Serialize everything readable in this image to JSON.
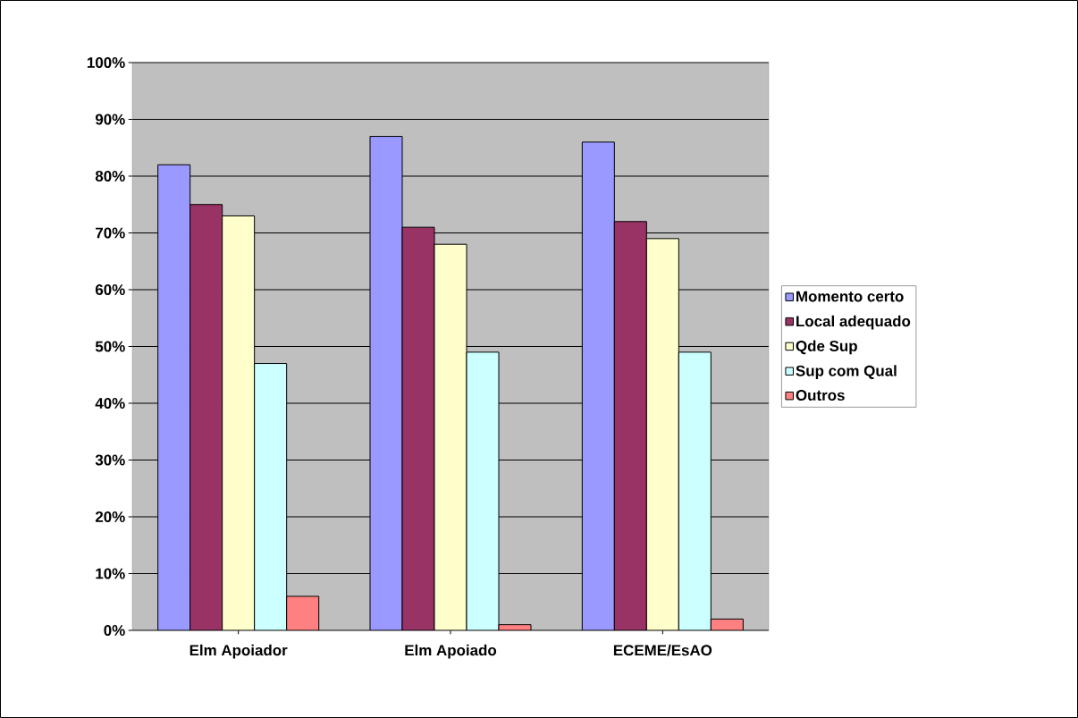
{
  "chart_data": {
    "type": "bar",
    "categories": [
      "Elm Apoiador",
      "Elm Apoiado",
      "ECEME/EsAO"
    ],
    "series": [
      {
        "name": "Momento certo",
        "color": "#9999ff",
        "values": [
          82,
          87,
          86
        ]
      },
      {
        "name": "Local adequado",
        "color": "#993366",
        "values": [
          75,
          71,
          72
        ]
      },
      {
        "name": "Qde Sup",
        "color": "#ffffcc",
        "values": [
          73,
          68,
          69
        ]
      },
      {
        "name": "Sup com Qual",
        "color": "#ccffff",
        "values": [
          47,
          49,
          49
        ]
      },
      {
        "name": "Outros",
        "color": "#ff8080",
        "values": [
          6,
          1,
          2
        ]
      }
    ],
    "ylim": [
      0,
      100
    ],
    "yticks": [
      {
        "value": 0,
        "label": "0%"
      },
      {
        "value": 10,
        "label": "10%"
      },
      {
        "value": 20,
        "label": "20%"
      },
      {
        "value": 30,
        "label": "30%"
      },
      {
        "value": 40,
        "label": "40%"
      },
      {
        "value": 50,
        "label": "50%"
      },
      {
        "value": 60,
        "label": "60%"
      },
      {
        "value": 70,
        "label": "70%"
      },
      {
        "value": 80,
        "label": "80%"
      },
      {
        "value": 90,
        "label": "90%"
      },
      {
        "value": 100,
        "label": "100%"
      }
    ],
    "grid": "y",
    "legend": "right"
  }
}
